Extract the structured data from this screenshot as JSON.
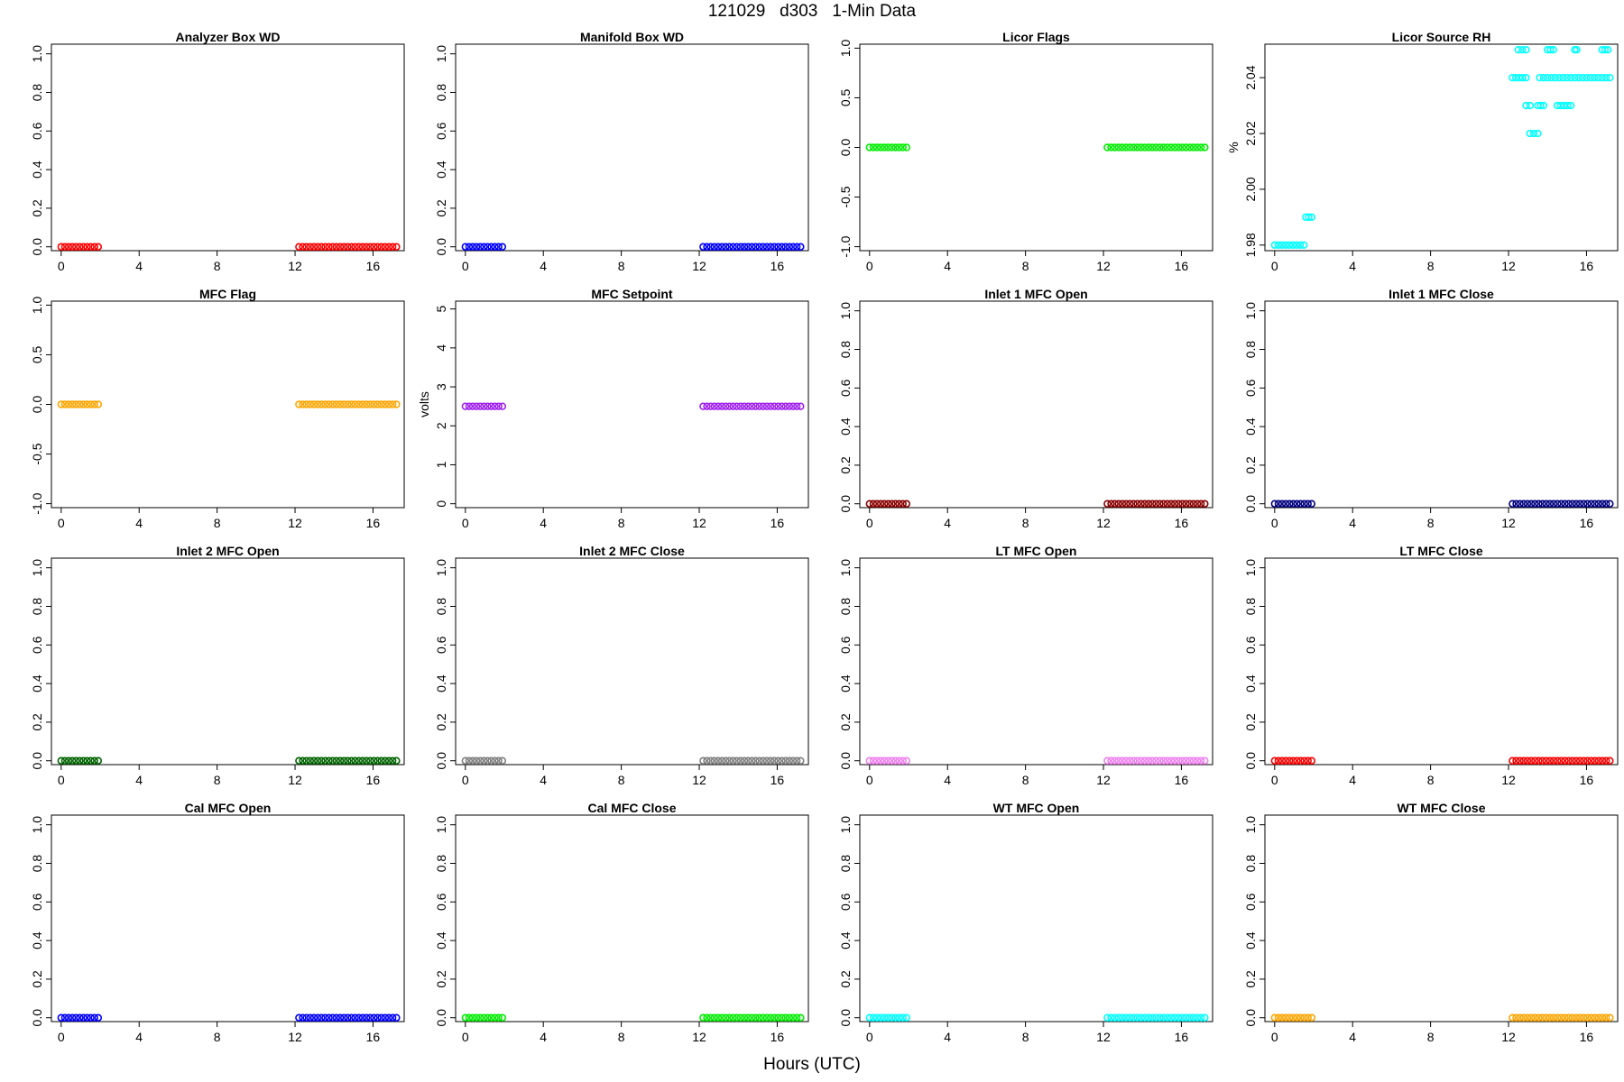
{
  "figure": {
    "title": "121029   d303   1-Min Data",
    "xlabel": "Hours (UTC)"
  },
  "chart_data": [
    {
      "type": "scatter",
      "title": "Analyzer Box WD",
      "ylabel": "",
      "xlim": [
        -0.5,
        17.6
      ],
      "ylim": [
        -0.02,
        1.05
      ],
      "xticks": [
        0,
        4,
        8,
        12,
        16
      ],
      "yticks": [
        0.0,
        0.2,
        0.4,
        0.6,
        0.8,
        1.0
      ],
      "ytick_labels": [
        "0.0",
        "0.2",
        "0.4",
        "0.6",
        "0.8",
        "1.0"
      ],
      "color": "#ff0000",
      "segments": [
        {
          "x_start": 0.0,
          "x_end": 1.9,
          "y": 0.0
        },
        {
          "x_start": 12.2,
          "x_end": 17.2,
          "y": 0.0
        }
      ]
    },
    {
      "type": "scatter",
      "title": "Manifold Box WD",
      "ylabel": "",
      "xlim": [
        -0.5,
        17.6
      ],
      "ylim": [
        -0.02,
        1.05
      ],
      "xticks": [
        0,
        4,
        8,
        12,
        16
      ],
      "yticks": [
        0.0,
        0.2,
        0.4,
        0.6,
        0.8,
        1.0
      ],
      "ytick_labels": [
        "0.0",
        "0.2",
        "0.4",
        "0.6",
        "0.8",
        "1.0"
      ],
      "color": "#0000ff",
      "segments": [
        {
          "x_start": 0.0,
          "x_end": 1.9,
          "y": 0.0
        },
        {
          "x_start": 12.2,
          "x_end": 17.2,
          "y": 0.0
        }
      ]
    },
    {
      "type": "scatter",
      "title": "Licor Flags",
      "ylabel": "",
      "xlim": [
        -0.5,
        17.6
      ],
      "ylim": [
        -1.04,
        1.04
      ],
      "xticks": [
        0,
        4,
        8,
        12,
        16
      ],
      "yticks": [
        -1.0,
        -0.5,
        0.0,
        0.5,
        1.0
      ],
      "ytick_labels": [
        "-1.0",
        "-0.5",
        "0.0",
        "0.5",
        "1.0"
      ],
      "color": "#00ee00",
      "segments": [
        {
          "x_start": 0.0,
          "x_end": 1.9,
          "y": 0.0
        },
        {
          "x_start": 12.2,
          "x_end": 17.2,
          "y": 0.0
        }
      ]
    },
    {
      "type": "scatter",
      "title": "Licor Source RH",
      "ylabel": "%",
      "xlim": [
        -0.5,
        17.6
      ],
      "ylim": [
        1.978,
        2.052
      ],
      "xticks": [
        0,
        4,
        8,
        12,
        16
      ],
      "yticks": [
        1.98,
        2.0,
        2.02,
        2.04
      ],
      "ytick_labels": [
        "1.98",
        "2.00",
        "2.02",
        "2.04"
      ],
      "color": "#00ffff",
      "segments": [
        {
          "x_start": 0.0,
          "x_end": 1.5,
          "y": 1.98
        },
        {
          "x_start": 1.6,
          "x_end": 1.9,
          "y": 1.99
        },
        {
          "x_start": 12.2,
          "x_end": 12.9,
          "y": 2.04
        },
        {
          "x_start": 12.5,
          "x_end": 12.9,
          "y": 2.05
        },
        {
          "x_start": 12.9,
          "x_end": 13.1,
          "y": 2.03
        },
        {
          "x_start": 13.1,
          "x_end": 13.5,
          "y": 2.02
        },
        {
          "x_start": 13.5,
          "x_end": 13.8,
          "y": 2.03
        },
        {
          "x_start": 13.6,
          "x_end": 14.8,
          "y": 2.04
        },
        {
          "x_start": 14.0,
          "x_end": 14.3,
          "y": 2.05
        },
        {
          "x_start": 14.5,
          "x_end": 15.2,
          "y": 2.03
        },
        {
          "x_start": 15.0,
          "x_end": 17.2,
          "y": 2.04
        },
        {
          "x_start": 15.4,
          "x_end": 15.5,
          "y": 2.05
        },
        {
          "x_start": 16.8,
          "x_end": 17.1,
          "y": 2.05
        }
      ]
    },
    {
      "type": "scatter",
      "title": "MFC Flag",
      "ylabel": "",
      "xlim": [
        -0.5,
        17.6
      ],
      "ylim": [
        -1.04,
        1.04
      ],
      "xticks": [
        0,
        4,
        8,
        12,
        16
      ],
      "yticks": [
        -1.0,
        -0.5,
        0.0,
        0.5,
        1.0
      ],
      "ytick_labels": [
        "-1.0",
        "-0.5",
        "0.0",
        "0.5",
        "1.0"
      ],
      "color": "#ffa500",
      "segments": [
        {
          "x_start": 0.0,
          "x_end": 1.9,
          "y": 0.0
        },
        {
          "x_start": 12.2,
          "x_end": 17.2,
          "y": 0.0
        }
      ]
    },
    {
      "type": "scatter",
      "title": "MFC Setpoint",
      "ylabel": "volts",
      "xlim": [
        -0.5,
        17.6
      ],
      "ylim": [
        -0.1,
        5.2
      ],
      "xticks": [
        0,
        4,
        8,
        12,
        16
      ],
      "yticks": [
        0,
        1,
        2,
        3,
        4,
        5
      ],
      "ytick_labels": [
        "0",
        "1",
        "2",
        "3",
        "4",
        "5"
      ],
      "color": "#a020f0",
      "segments": [
        {
          "x_start": 0.0,
          "x_end": 1.9,
          "y": 2.5
        },
        {
          "x_start": 12.2,
          "x_end": 17.2,
          "y": 2.5
        }
      ]
    },
    {
      "type": "scatter",
      "title": "Inlet 1 MFC Open",
      "ylabel": "",
      "xlim": [
        -0.5,
        17.6
      ],
      "ylim": [
        -0.02,
        1.05
      ],
      "xticks": [
        0,
        4,
        8,
        12,
        16
      ],
      "yticks": [
        0.0,
        0.2,
        0.4,
        0.6,
        0.8,
        1.0
      ],
      "ytick_labels": [
        "0.0",
        "0.2",
        "0.4",
        "0.6",
        "0.8",
        "1.0"
      ],
      "color": "#8b0000",
      "segments": [
        {
          "x_start": 0.0,
          "x_end": 1.9,
          "y": 0.0
        },
        {
          "x_start": 12.2,
          "x_end": 17.2,
          "y": 0.0
        }
      ]
    },
    {
      "type": "scatter",
      "title": "Inlet 1 MFC Close",
      "ylabel": "",
      "xlim": [
        -0.5,
        17.6
      ],
      "ylim": [
        -0.02,
        1.05
      ],
      "xticks": [
        0,
        4,
        8,
        12,
        16
      ],
      "yticks": [
        0.0,
        0.2,
        0.4,
        0.6,
        0.8,
        1.0
      ],
      "ytick_labels": [
        "0.0",
        "0.2",
        "0.4",
        "0.6",
        "0.8",
        "1.0"
      ],
      "color": "#000080",
      "segments": [
        {
          "x_start": 0.0,
          "x_end": 1.9,
          "y": 0.0
        },
        {
          "x_start": 12.2,
          "x_end": 17.2,
          "y": 0.0
        }
      ]
    },
    {
      "type": "scatter",
      "title": "Inlet 2 MFC Open",
      "ylabel": "",
      "xlim": [
        -0.5,
        17.6
      ],
      "ylim": [
        -0.02,
        1.05
      ],
      "xticks": [
        0,
        4,
        8,
        12,
        16
      ],
      "yticks": [
        0.0,
        0.2,
        0.4,
        0.6,
        0.8,
        1.0
      ],
      "ytick_labels": [
        "0.0",
        "0.2",
        "0.4",
        "0.6",
        "0.8",
        "1.0"
      ],
      "color": "#006400",
      "segments": [
        {
          "x_start": 0.0,
          "x_end": 1.9,
          "y": 0.0
        },
        {
          "x_start": 12.2,
          "x_end": 17.2,
          "y": 0.0
        }
      ]
    },
    {
      "type": "scatter",
      "title": "Inlet 2 MFC Close",
      "ylabel": "",
      "xlim": [
        -0.5,
        17.6
      ],
      "ylim": [
        -0.02,
        1.05
      ],
      "xticks": [
        0,
        4,
        8,
        12,
        16
      ],
      "yticks": [
        0.0,
        0.2,
        0.4,
        0.6,
        0.8,
        1.0
      ],
      "ytick_labels": [
        "0.0",
        "0.2",
        "0.4",
        "0.6",
        "0.8",
        "1.0"
      ],
      "color": "#808080",
      "segments": [
        {
          "x_start": 0.0,
          "x_end": 1.9,
          "y": 0.0
        },
        {
          "x_start": 12.2,
          "x_end": 17.2,
          "y": 0.0
        }
      ]
    },
    {
      "type": "scatter",
      "title": "LT MFC Open",
      "ylabel": "",
      "xlim": [
        -0.5,
        17.6
      ],
      "ylim": [
        -0.02,
        1.05
      ],
      "xticks": [
        0,
        4,
        8,
        12,
        16
      ],
      "yticks": [
        0.0,
        0.2,
        0.4,
        0.6,
        0.8,
        1.0
      ],
      "ytick_labels": [
        "0.0",
        "0.2",
        "0.4",
        "0.6",
        "0.8",
        "1.0"
      ],
      "color": "#ee82ee",
      "segments": [
        {
          "x_start": 0.0,
          "x_end": 1.9,
          "y": 0.0
        },
        {
          "x_start": 12.2,
          "x_end": 17.2,
          "y": 0.0
        }
      ]
    },
    {
      "type": "scatter",
      "title": "LT MFC Close",
      "ylabel": "",
      "xlim": [
        -0.5,
        17.6
      ],
      "ylim": [
        -0.02,
        1.05
      ],
      "xticks": [
        0,
        4,
        8,
        12,
        16
      ],
      "yticks": [
        0.0,
        0.2,
        0.4,
        0.6,
        0.8,
        1.0
      ],
      "ytick_labels": [
        "0.0",
        "0.2",
        "0.4",
        "0.6",
        "0.8",
        "1.0"
      ],
      "color": "#ff0000",
      "segments": [
        {
          "x_start": 0.0,
          "x_end": 1.9,
          "y": 0.0
        },
        {
          "x_start": 12.2,
          "x_end": 17.2,
          "y": 0.0
        }
      ]
    },
    {
      "type": "scatter",
      "title": "Cal MFC Open",
      "ylabel": "",
      "xlim": [
        -0.5,
        17.6
      ],
      "ylim": [
        -0.02,
        1.05
      ],
      "xticks": [
        0,
        4,
        8,
        12,
        16
      ],
      "yticks": [
        0.0,
        0.2,
        0.4,
        0.6,
        0.8,
        1.0
      ],
      "ytick_labels": [
        "0.0",
        "0.2",
        "0.4",
        "0.6",
        "0.8",
        "1.0"
      ],
      "color": "#0000ff",
      "segments": [
        {
          "x_start": 0.0,
          "x_end": 1.9,
          "y": 0.0
        },
        {
          "x_start": 12.2,
          "x_end": 17.2,
          "y": 0.0
        }
      ]
    },
    {
      "type": "scatter",
      "title": "Cal MFC Close",
      "ylabel": "",
      "xlim": [
        -0.5,
        17.6
      ],
      "ylim": [
        -0.02,
        1.05
      ],
      "xticks": [
        0,
        4,
        8,
        12,
        16
      ],
      "yticks": [
        0.0,
        0.2,
        0.4,
        0.6,
        0.8,
        1.0
      ],
      "ytick_labels": [
        "0.0",
        "0.2",
        "0.4",
        "0.6",
        "0.8",
        "1.0"
      ],
      "color": "#00ee00",
      "segments": [
        {
          "x_start": 0.0,
          "x_end": 1.9,
          "y": 0.0
        },
        {
          "x_start": 12.2,
          "x_end": 17.2,
          "y": 0.0
        }
      ]
    },
    {
      "type": "scatter",
      "title": "WT MFC Open",
      "ylabel": "",
      "xlim": [
        -0.5,
        17.6
      ],
      "ylim": [
        -0.02,
        1.05
      ],
      "xticks": [
        0,
        4,
        8,
        12,
        16
      ],
      "yticks": [
        0.0,
        0.2,
        0.4,
        0.6,
        0.8,
        1.0
      ],
      "ytick_labels": [
        "0.0",
        "0.2",
        "0.4",
        "0.6",
        "0.8",
        "1.0"
      ],
      "color": "#00ffff",
      "segments": [
        {
          "x_start": 0.0,
          "x_end": 1.9,
          "y": 0.0
        },
        {
          "x_start": 12.2,
          "x_end": 17.2,
          "y": 0.0
        }
      ]
    },
    {
      "type": "scatter",
      "title": "WT MFC Close",
      "ylabel": "",
      "xlim": [
        -0.5,
        17.6
      ],
      "ylim": [
        -0.02,
        1.05
      ],
      "xticks": [
        0,
        4,
        8,
        12,
        16
      ],
      "yticks": [
        0.0,
        0.2,
        0.4,
        0.6,
        0.8,
        1.0
      ],
      "ytick_labels": [
        "0.0",
        "0.2",
        "0.4",
        "0.6",
        "0.8",
        "1.0"
      ],
      "color": "#ffa500",
      "segments": [
        {
          "x_start": 0.0,
          "x_end": 1.9,
          "y": 0.0
        },
        {
          "x_start": 12.2,
          "x_end": 17.2,
          "y": 0.0
        }
      ]
    }
  ]
}
